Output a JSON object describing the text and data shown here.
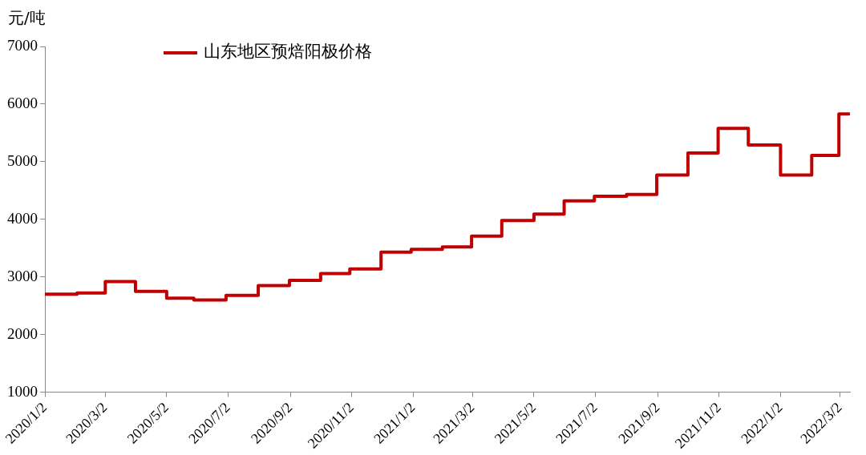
{
  "chart_data": {
    "type": "step",
    "ylabel": "元/吨",
    "legend": "top left",
    "marker": "none",
    "line_style": "solid",
    "grid": false,
    "x": [
      "2020-01-02",
      "2020-02-03",
      "2020-03-02",
      "2020-04-01",
      "2020-05-02",
      "2020-05-29",
      "2020-06-30",
      "2020-08-01",
      "2020-09-01",
      "2020-10-02",
      "2020-10-31",
      "2020-12-01",
      "2020-12-31",
      "2021-01-31",
      "2021-03-01",
      "2021-03-31",
      "2021-05-02",
      "2021-06-01",
      "2021-07-01",
      "2021-08-02",
      "2021-09-01",
      "2021-10-02",
      "2021-11-01",
      "2021-12-01",
      "2022-01-02",
      "2022-02-02",
      "2022-03-01",
      "2022-03-11"
    ],
    "series": [
      {
        "name": "山东地区预焙阳极价格",
        "color": "#c00000",
        "values": [
          2700,
          2720,
          2920,
          2750,
          2630,
          2600,
          2680,
          2850,
          2940,
          3060,
          3140,
          3430,
          3480,
          3520,
          3710,
          3980,
          4090,
          4320,
          4400,
          4430,
          4770,
          5150,
          5580,
          5290,
          4770,
          5110,
          5830,
          5830
        ]
      }
    ],
    "xlim": [
      "2020-01-02",
      "2022-03-12"
    ],
    "xticks": [
      {
        "value": "2020-01-02",
        "label": "2020/1/2"
      },
      {
        "value": "2020-03-02",
        "label": "2020/3/2"
      },
      {
        "value": "2020-05-02",
        "label": "2020/5/2"
      },
      {
        "value": "2020-07-02",
        "label": "2020/7/2"
      },
      {
        "value": "2020-09-02",
        "label": "2020/9/2"
      },
      {
        "value": "2020-11-02",
        "label": "2020/11/2"
      },
      {
        "value": "2021-01-02",
        "label": "2021/1/2"
      },
      {
        "value": "2021-03-02",
        "label": "2021/3/2"
      },
      {
        "value": "2021-05-02",
        "label": "2021/5/2"
      },
      {
        "value": "2021-07-02",
        "label": "2021/7/2"
      },
      {
        "value": "2021-09-02",
        "label": "2021/9/2"
      },
      {
        "value": "2021-11-02",
        "label": "2021/11/2"
      },
      {
        "value": "2022-01-02",
        "label": "2022/1/2"
      },
      {
        "value": "2022-03-02",
        "label": "2022/3/2"
      }
    ],
    "ylim": [
      1000,
      7000
    ],
    "yticks": [
      1000,
      2000,
      3000,
      4000,
      5000,
      6000,
      7000
    ]
  }
}
